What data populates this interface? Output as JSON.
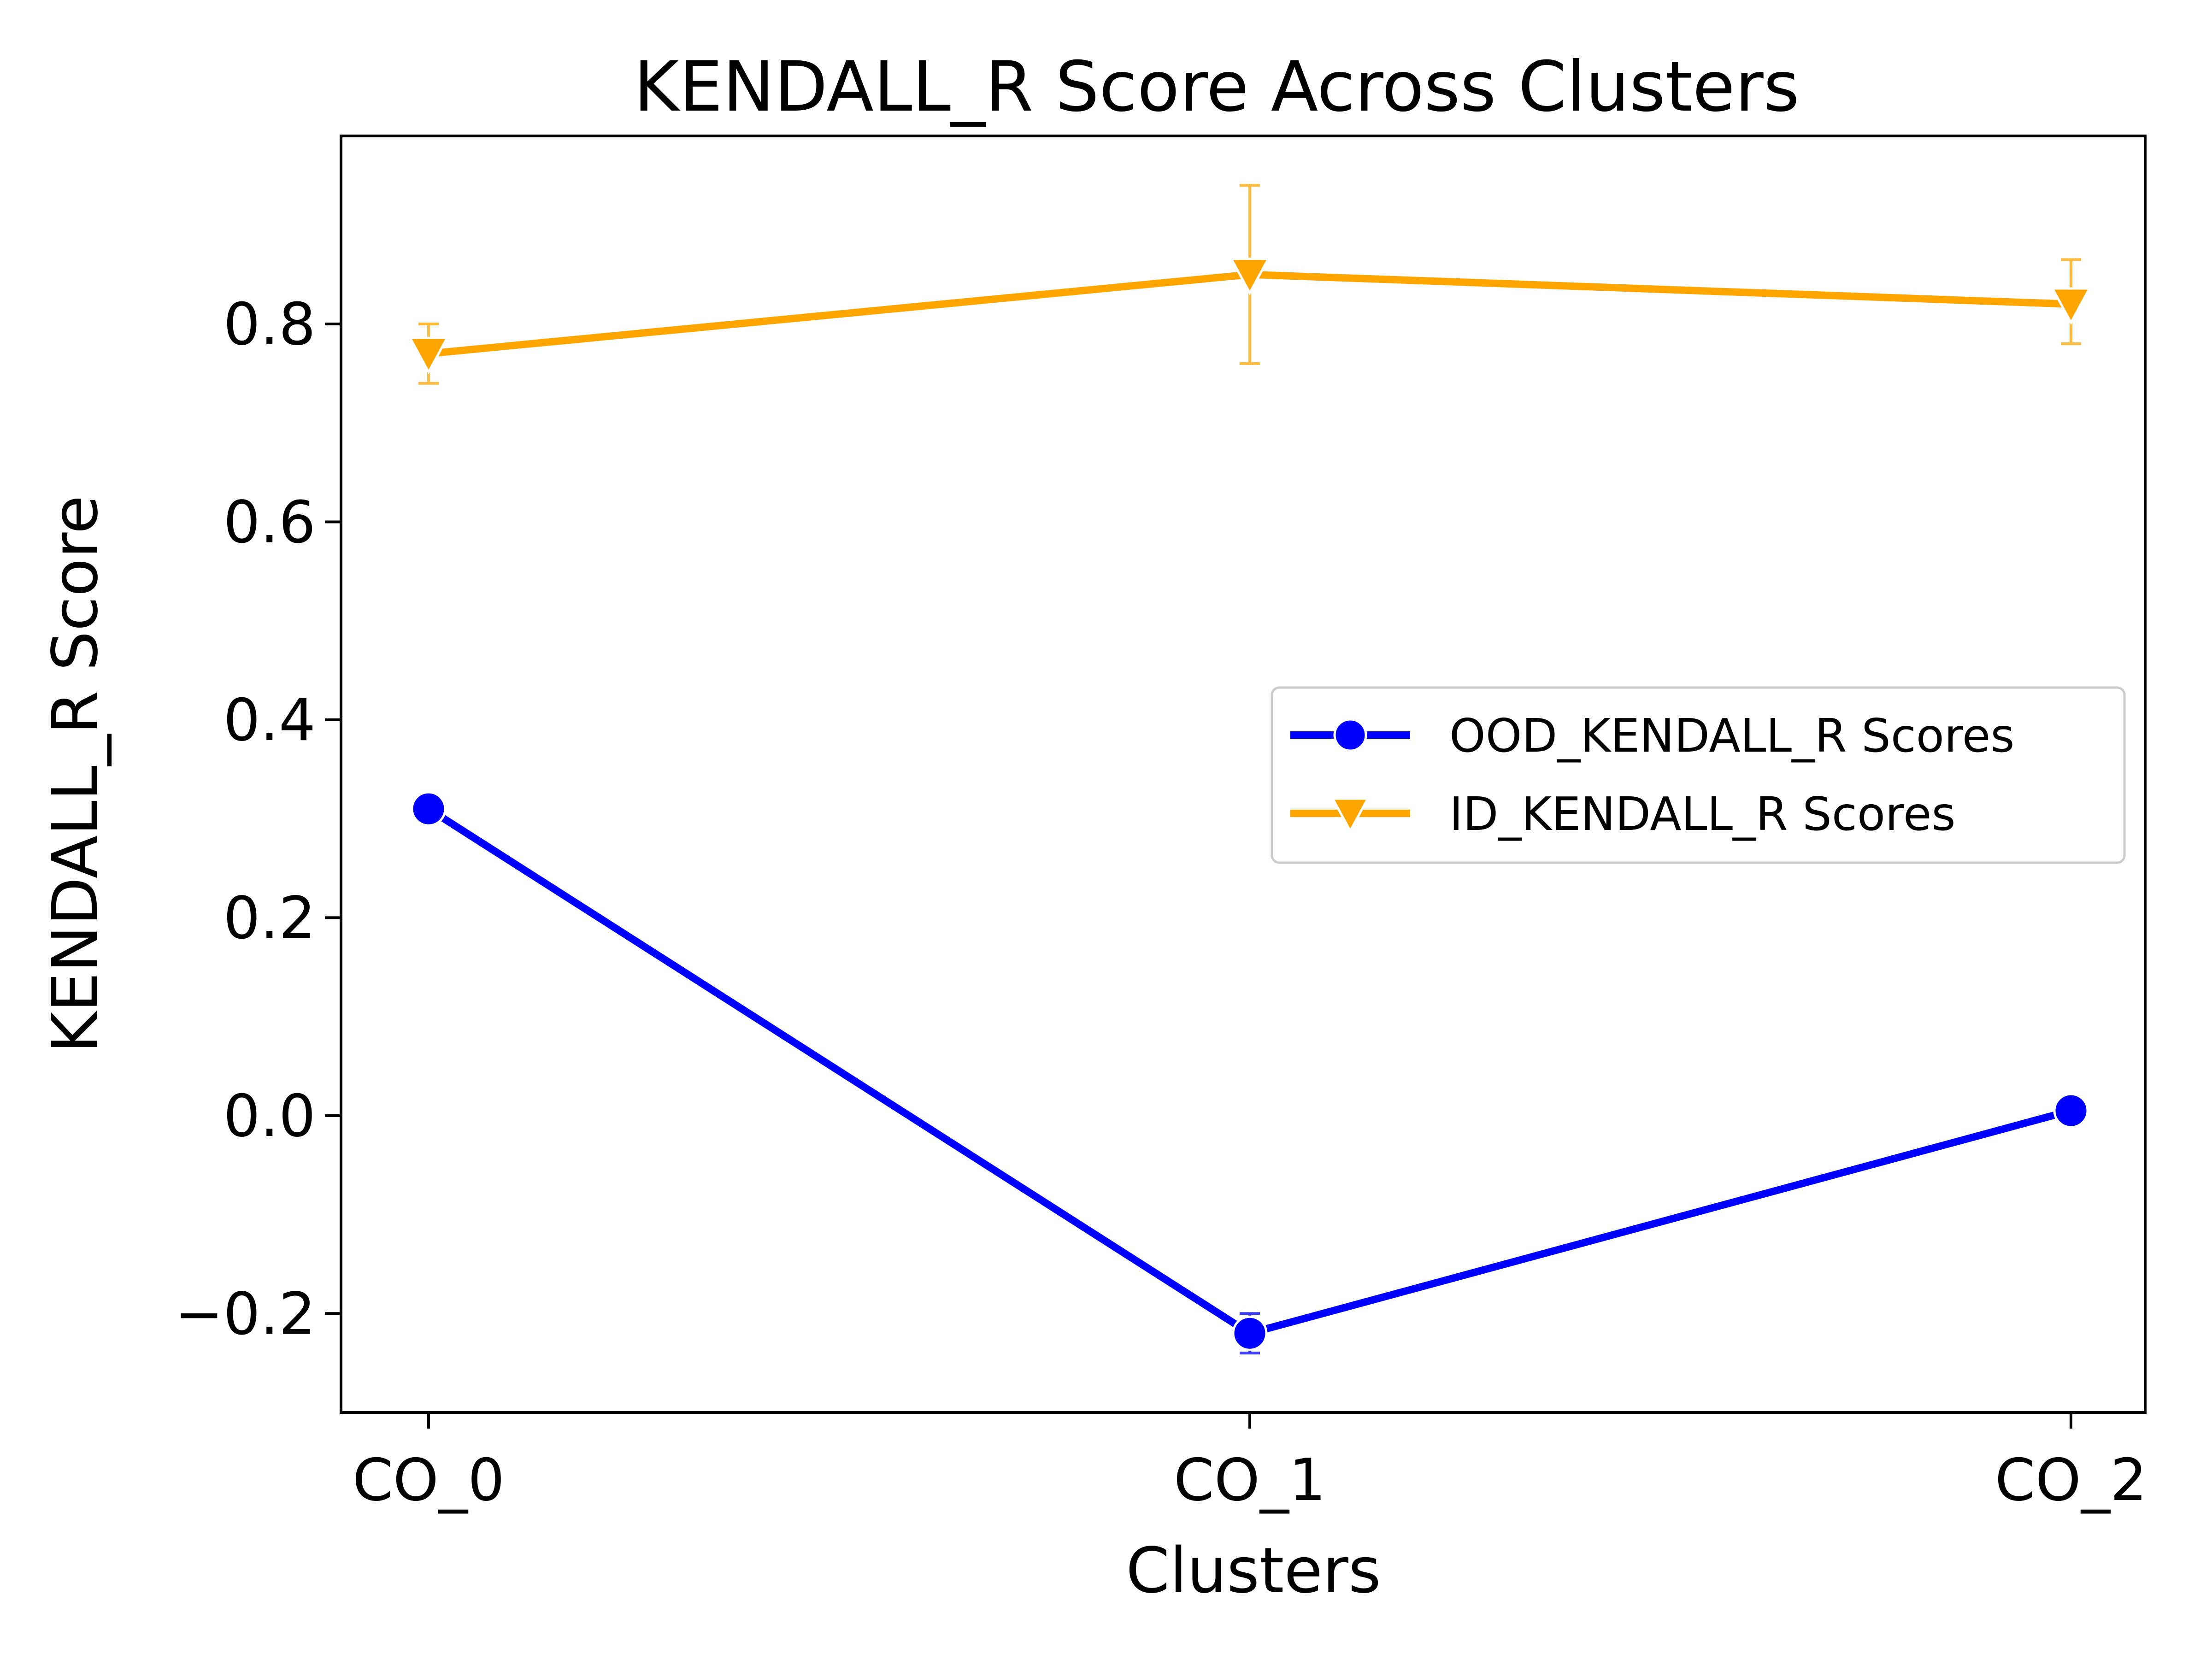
{
  "chart_data": {
    "type": "line",
    "title": "KENDALL_R Score Across Clusters",
    "xlabel": "Clusters",
    "ylabel": "KENDALL_R Score",
    "categories": [
      "CO_0",
      "CO_1",
      "CO_2"
    ],
    "ylim": [
      -0.3,
      0.99
    ],
    "yticks": [
      -0.2,
      0.0,
      0.2,
      0.4,
      0.6,
      0.8
    ],
    "ytick_labels": [
      "−0.2",
      "0.0",
      "0.2",
      "0.4",
      "0.6",
      "0.8"
    ],
    "grid": false,
    "legend_position": "center-right",
    "series": [
      {
        "name": "OOD_KENDALL_R Scores",
        "values": [
          0.31,
          -0.22,
          0.005
        ],
        "err_low": [
          0.31,
          -0.24,
          0.005
        ],
        "err_high": [
          0.31,
          -0.2,
          0.005
        ],
        "color": "#0000ff",
        "marker": "circle"
      },
      {
        "name": "ID_KENDALL_R Scores",
        "values": [
          0.77,
          0.85,
          0.82
        ],
        "err_low": [
          0.74,
          0.76,
          0.78
        ],
        "err_high": [
          0.8,
          0.94,
          0.865
        ],
        "color": "#ffa500",
        "marker": "triangle-down"
      }
    ]
  }
}
